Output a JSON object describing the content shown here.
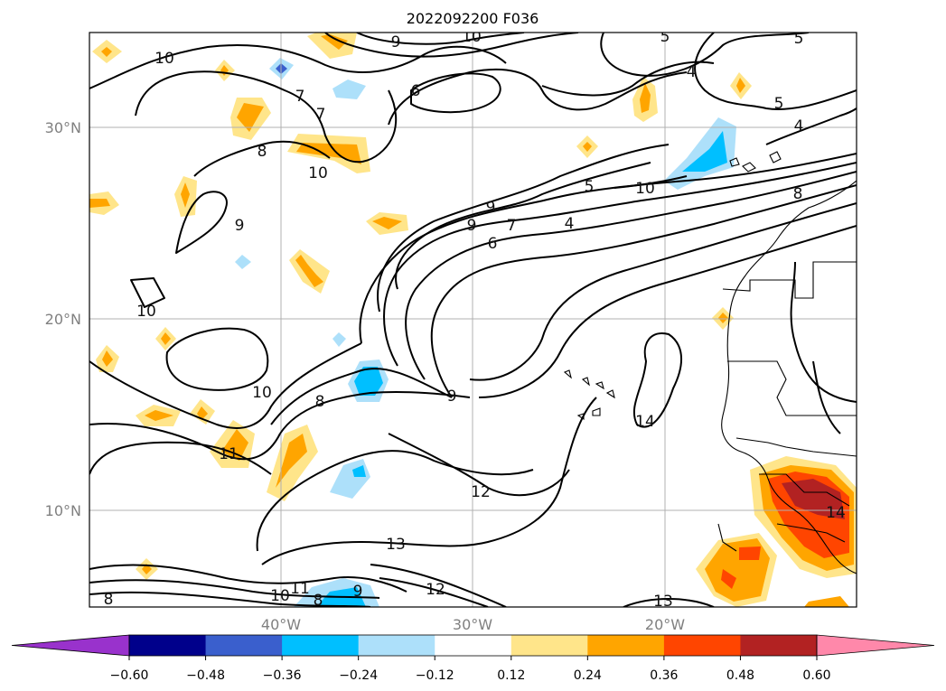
{
  "title": "2022092200 F036",
  "lat_labels": [
    "30°N",
    "20°N",
    "10°N"
  ],
  "lon_labels": [
    "40°W",
    "30°W",
    "20°W"
  ],
  "colorbar": {
    "ticks": [
      "-0.60",
      "-0.48",
      "-0.36",
      "-0.24",
      "-0.12",
      "0.12",
      "0.24",
      "0.36",
      "0.48",
      "0.60"
    ],
    "colors": [
      "#9932CC",
      "#00008B",
      "#3A5FCD",
      "#00BFFF",
      "#ADE0FA",
      "#FFFFFF",
      "#FFE58A",
      "#FFA500",
      "#FF4500",
      "#B22222",
      "#FF88AA"
    ]
  },
  "contour_labels": [
    "10",
    "9",
    "10",
    "5",
    "5",
    "4",
    "6",
    "7",
    "7",
    "5",
    "8",
    "10",
    "4",
    "9",
    "9",
    "7",
    "6",
    "4",
    "5",
    "8",
    "10",
    "9",
    "10",
    "8",
    "9",
    "10",
    "14",
    "11",
    "12",
    "13",
    "10",
    "11",
    "12",
    "9",
    "8",
    "13",
    "14",
    "8"
  ]
}
